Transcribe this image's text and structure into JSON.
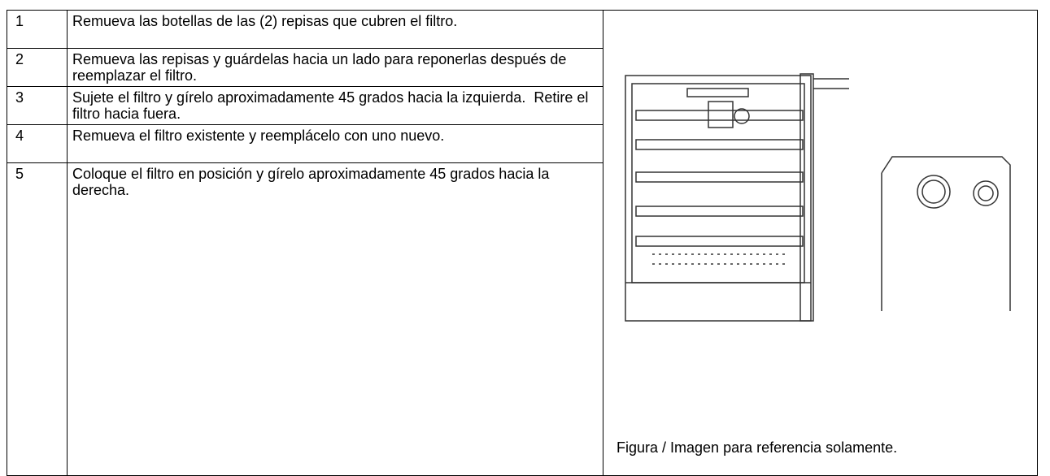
{
  "table": {
    "rows": [
      [
        "1",
        "Remueva las botellas de las (2) repisas que cubren el filtro."
      ],
      [
        "2",
        "Remueva las repisas y guárdelas hacia un lado para reponerlas después de reemplazar el filtro."
      ],
      [
        "3",
        "Sujete el filtro y gírelo aproximadamente 45 grados hacia la izquierda.  Retire el filtro hacia fuera."
      ],
      [
        "4",
        "Remueva el filtro existente y reemplácelo con uno nuevo."
      ],
      [
        "5",
        "Coloque el filtro en posición y gírelo aproximadamente 45 grados hacia la derecha."
      ]
    ],
    "caption": "Figura / Imagen para referencia solamente."
  }
}
